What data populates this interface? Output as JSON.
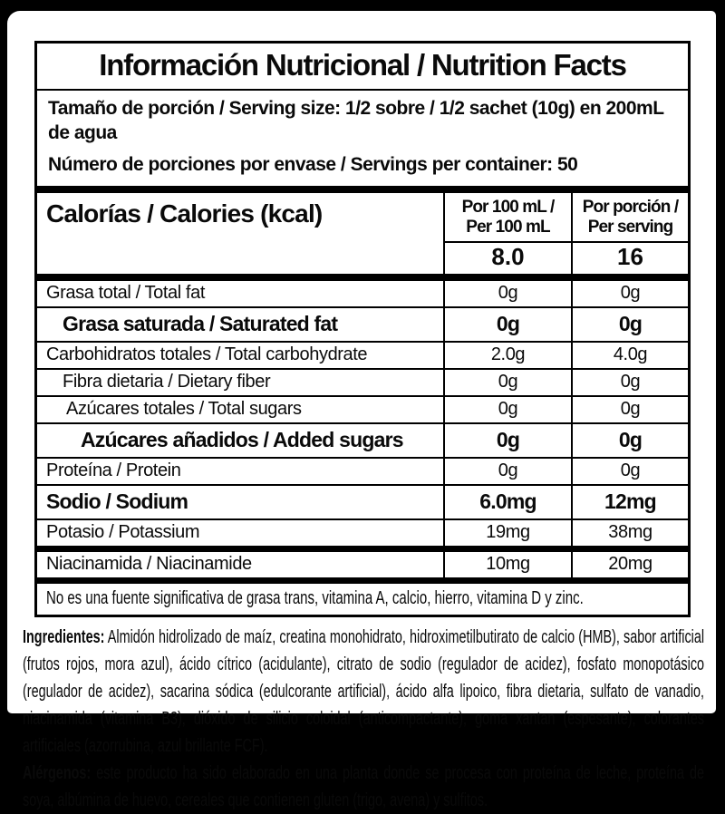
{
  "colors": {
    "background": "#000000",
    "card": "#ffffff",
    "text": "#0a0a0a",
    "border": "#000000"
  },
  "label": {
    "title": "Información Nutricional / Nutrition Facts",
    "serving_size": "Tamaño de porción / Serving size: 1/2 sobre / 1/2 sachet (10g) en 200mL\nde agua",
    "servings_per_container": "Número de porciones por envase / Servings per container: 50"
  },
  "table": {
    "columns": {
      "per100": "Por 100 mL /\nPer 100 mL",
      "per_serving": "Por porción /\nPer serving"
    },
    "calories": {
      "label": "Calorías / Calories (kcal)",
      "per100": "8.0",
      "per_serving": "16"
    },
    "rows": [
      {
        "name": "Grasa total / Total fat",
        "per100": "0g",
        "per_serving": "0g"
      },
      {
        "name": "Grasa saturada / Saturated fat",
        "per100": "0g",
        "per_serving": "0g"
      },
      {
        "name": "Carbohidratos totales / Total carbohydrate",
        "per100": "2.0g",
        "per_serving": "4.0g"
      },
      {
        "name": "Fibra dietaria / Dietary fiber",
        "per100": "0g",
        "per_serving": "0g"
      },
      {
        "name": "Azúcares totales / Total sugars",
        "per100": "0g",
        "per_serving": "0g"
      },
      {
        "name": "Azúcares añadidos / Added sugars",
        "per100": "0g",
        "per_serving": "0g"
      },
      {
        "name": "Proteína / Protein",
        "per100": "0g",
        "per_serving": "0g"
      },
      {
        "name": "Sodio / Sodium",
        "per100": "6.0mg",
        "per_serving": "12mg"
      },
      {
        "name": "Potasio / Potassium",
        "per100": "19mg",
        "per_serving": "38mg"
      },
      {
        "name": "Niacinamida / Niacinamide",
        "per100": "10mg",
        "per_serving": "20mg"
      }
    ],
    "footnote": "No es una fuente significativa de grasa trans, vitamina A, calcio, hierro, vitamina D y zinc."
  },
  "ingredients": {
    "label": "Ingredientes:",
    "text": "Almidón hidrolizado de maíz, creatina monohidrato, hidroximetilbutirato de calcio (HMB), sabor artificial (frutos rojos, mora azul), ácido cítrico (acidulante), citrato de sodio (regulador de acidez), fosfato monopotásico (regulador de acidez), sacarina sódica (edulcorante artificial), ácido alfa lipoico, fibra dietaria, sulfato de vanadio, niacinamida (vitamina B3), dióxido de silicio coloidal (anticompactante), goma xantan (espesante), colorantes artificiales (azorrubina, azul brillante FCF)."
  },
  "allergens": {
    "label": "Alérgenos:",
    "text": "este producto ha sido elaborado en una planta donde se procesa con proteína de leche, proteína de soya, albúmina de huevo, cereales que contienen gluten (trigo, avena) y sulfitos."
  }
}
